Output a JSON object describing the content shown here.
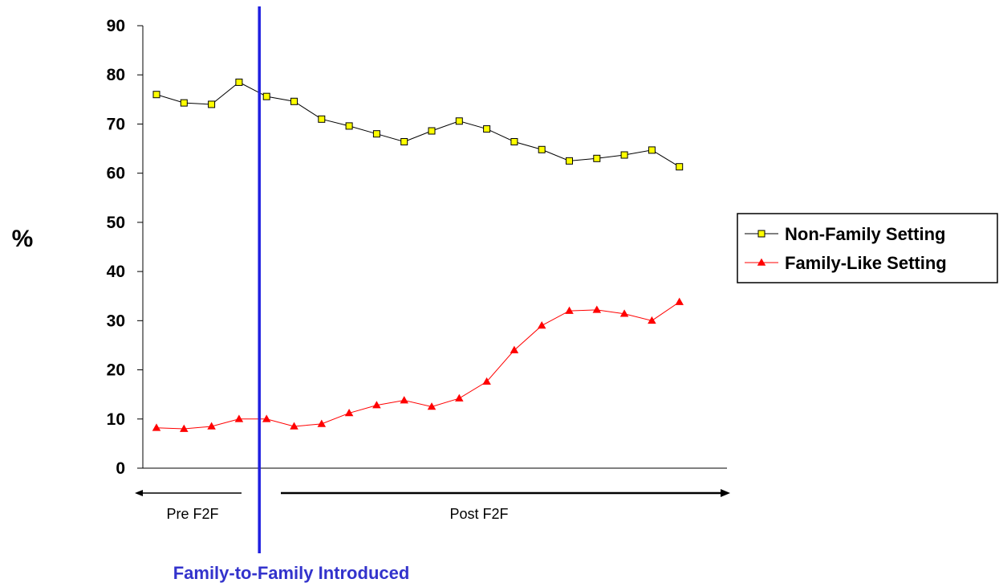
{
  "chart_data": {
    "type": "line",
    "ylabel": "%",
    "ylim": [
      0,
      90
    ],
    "yticks": [
      0,
      10,
      20,
      30,
      40,
      50,
      60,
      70,
      80,
      90
    ],
    "grid": false,
    "legend_position": "right",
    "x": [
      1,
      2,
      3,
      4,
      5,
      6,
      7,
      8,
      9,
      10,
      11,
      12,
      13,
      14,
      15,
      16,
      17,
      18,
      19,
      20
    ],
    "series": [
      {
        "name": "Non-Family Setting",
        "marker": "square",
        "line_color": "#000000",
        "marker_color": "#ffff00",
        "values": [
          76,
          74.3,
          74,
          78.5,
          75.6,
          74.6,
          71,
          69.6,
          68,
          66.4,
          68.6,
          70.6,
          69,
          66.4,
          64.8,
          62.5,
          63,
          63.7,
          64.7,
          61.3
        ]
      },
      {
        "name": "Family-Like Setting",
        "marker": "triangle",
        "line_color": "#ff0000",
        "marker_color": "#ff0000",
        "values": [
          8.2,
          8,
          8.5,
          10,
          10,
          8.5,
          9,
          11.2,
          12.8,
          13.8,
          12.5,
          14.2,
          17.6,
          24,
          29,
          32,
          32.2,
          31.4,
          30,
          33.8
        ]
      }
    ],
    "annotations": {
      "intervention_after_index": 4,
      "intervention_color": "#1f1fe0",
      "intervention_label": "Family-to-Family Introduced",
      "pre_label": "Pre F2F",
      "post_label": "Post F2F"
    }
  }
}
